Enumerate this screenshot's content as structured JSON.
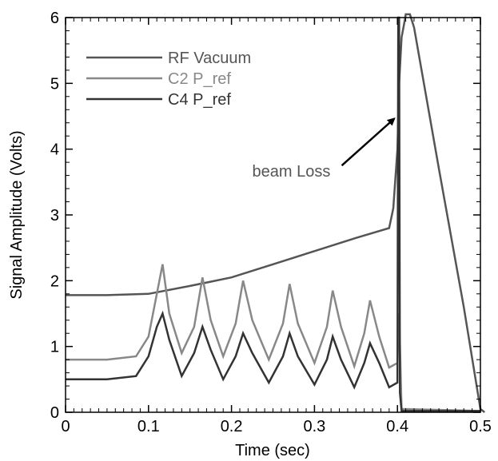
{
  "chart_data": {
    "type": "line",
    "xlabel": "Time (sec)",
    "ylabel": "Signal Amplitude (Volts)",
    "xlim": [
      0,
      0.5
    ],
    "ylim": [
      0,
      6
    ],
    "xticks": [
      "0",
      "0.1",
      "0.2",
      "0.3",
      "0.4",
      "0.5"
    ],
    "yticks": [
      "0",
      "1",
      "2",
      "3",
      "4",
      "5",
      "6"
    ],
    "grid": false,
    "legend_placement": "top-left",
    "series": [
      {
        "name": "RF Vacuum",
        "color": "#555555",
        "x": [
          0,
          0.05,
          0.1,
          0.15,
          0.2,
          0.25,
          0.3,
          0.35,
          0.39,
          0.395,
          0.4,
          0.402,
          0.405,
          0.408,
          0.41,
          0.415,
          0.42,
          0.45,
          0.48,
          0.5,
          0.505
        ],
        "y": [
          1.78,
          1.78,
          1.8,
          1.92,
          2.05,
          2.25,
          2.45,
          2.65,
          2.8,
          3.1,
          4.0,
          5.0,
          5.7,
          5.9,
          6.05,
          6.05,
          5.85,
          3.7,
          1.6,
          0.05,
          0
        ]
      },
      {
        "name": "C2 P_ref",
        "color": "#888888",
        "x": [
          0,
          0.05,
          0.085,
          0.1,
          0.11,
          0.117,
          0.125,
          0.14,
          0.155,
          0.165,
          0.175,
          0.19,
          0.205,
          0.214,
          0.225,
          0.245,
          0.262,
          0.27,
          0.28,
          0.3,
          0.315,
          0.322,
          0.332,
          0.348,
          0.36,
          0.367,
          0.378,
          0.39,
          0.4,
          0.402,
          0.405,
          0.5
        ],
        "y": [
          0.8,
          0.8,
          0.85,
          1.15,
          1.8,
          2.25,
          1.5,
          0.9,
          1.3,
          2.05,
          1.4,
          0.85,
          1.35,
          2.0,
          1.4,
          0.8,
          1.35,
          1.95,
          1.35,
          0.75,
          1.3,
          1.85,
          1.3,
          0.7,
          1.2,
          1.7,
          1.15,
          0.68,
          0.75,
          1.5,
          0.05,
          0.02
        ]
      },
      {
        "name": "C4 P_ref",
        "color": "#333333",
        "x": [
          0,
          0.05,
          0.085,
          0.1,
          0.11,
          0.117,
          0.125,
          0.14,
          0.155,
          0.165,
          0.175,
          0.19,
          0.205,
          0.214,
          0.225,
          0.245,
          0.262,
          0.27,
          0.28,
          0.3,
          0.315,
          0.322,
          0.332,
          0.348,
          0.36,
          0.367,
          0.378,
          0.39,
          0.4,
          0.401,
          0.402,
          0.403,
          0.405,
          0.5
        ],
        "y": [
          0.5,
          0.5,
          0.55,
          0.85,
          1.3,
          1.5,
          1.1,
          0.55,
          0.9,
          1.3,
          0.95,
          0.5,
          0.85,
          1.2,
          0.9,
          0.45,
          0.85,
          1.2,
          0.85,
          0.42,
          0.8,
          1.15,
          0.8,
          0.38,
          0.75,
          1.05,
          0.75,
          0.38,
          0.45,
          6.0,
          6.0,
          0.3,
          0.02,
          0.02
        ]
      }
    ],
    "annotations": [
      {
        "text": "beam Loss",
        "x": 0.225,
        "y": 3.8,
        "arrow_to_x": 0.4,
        "arrow_to_y": 4.5
      }
    ]
  }
}
